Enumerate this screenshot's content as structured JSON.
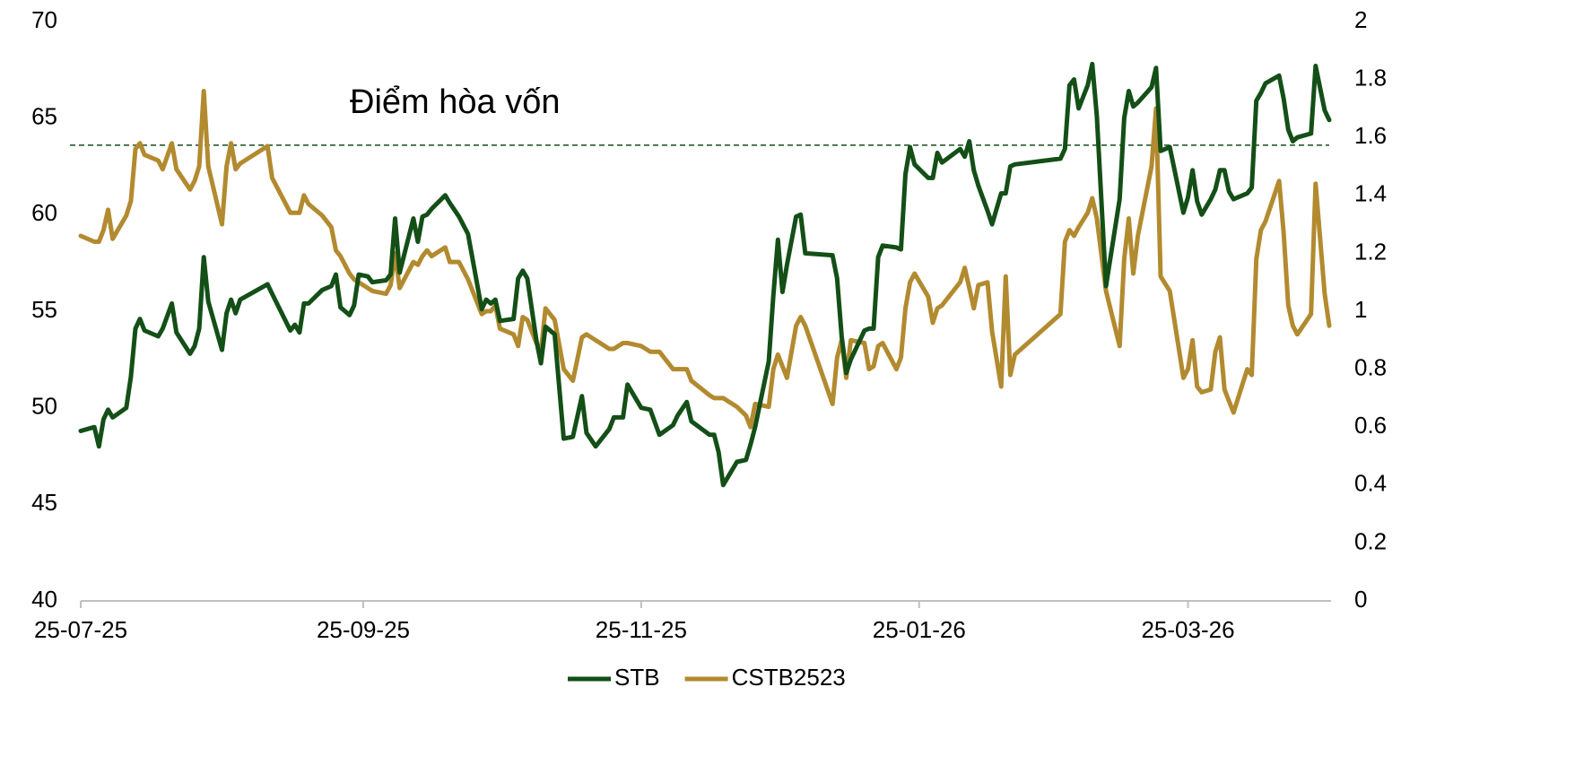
{
  "chart_data": {
    "type": "line",
    "x": [
      "2025-07-25",
      "2025-07-28",
      "2025-07-29",
      "2025-07-30",
      "2025-07-31",
      "2025-08-01",
      "2025-08-04",
      "2025-08-05",
      "2025-08-06",
      "2025-08-07",
      "2025-08-08",
      "2025-08-11",
      "2025-08-12",
      "2025-08-14",
      "2025-08-15",
      "2025-08-18",
      "2025-08-19",
      "2025-08-20",
      "2025-08-21",
      "2025-08-22",
      "2025-08-25",
      "2025-08-26",
      "2025-08-27",
      "2025-08-28",
      "2025-08-29",
      "2025-09-04",
      "2025-09-05",
      "2025-09-09",
      "2025-09-10",
      "2025-09-11",
      "2025-09-12",
      "2025-09-13",
      "2025-09-16",
      "2025-09-18",
      "2025-09-19",
      "2025-09-20",
      "2025-09-22",
      "2025-09-23",
      "2025-09-24",
      "2025-09-26",
      "2025-09-27",
      "2025-09-30",
      "2025-10-01",
      "2025-10-02",
      "2025-10-03",
      "2025-10-06",
      "2025-10-07",
      "2025-10-08",
      "2025-10-09",
      "2025-10-10",
      "2025-10-13",
      "2025-10-14",
      "2025-10-16",
      "2025-10-18",
      "2025-10-21",
      "2025-10-22",
      "2025-10-23",
      "2025-10-24",
      "2025-10-25",
      "2025-10-28",
      "2025-10-29",
      "2025-10-30",
      "2025-10-31",
      "2025-11-02",
      "2025-11-03",
      "2025-11-04",
      "2025-11-06",
      "2025-11-08",
      "2025-11-10",
      "2025-11-12",
      "2025-11-13",
      "2025-11-15",
      "2025-11-18",
      "2025-11-19",
      "2025-11-21",
      "2025-11-22",
      "2025-11-25",
      "2025-11-27",
      "2025-11-29",
      "2025-12-02",
      "2025-12-03",
      "2025-12-05",
      "2025-12-06",
      "2025-12-10",
      "2025-12-11",
      "2025-12-12",
      "2025-12-13",
      "2025-12-16",
      "2025-12-18",
      "2025-12-19",
      "2025-12-20",
      "2025-12-23",
      "2025-12-24",
      "2025-12-25",
      "2025-12-26",
      "2025-12-27",
      "2025-12-29",
      "2025-12-30",
      "2025-12-31",
      "2026-01-06",
      "2026-01-07",
      "2026-01-08",
      "2026-01-09",
      "2026-01-10",
      "2026-01-13",
      "2026-01-14",
      "2026-01-15",
      "2026-01-16",
      "2026-01-17",
      "2026-01-20",
      "2026-01-21",
      "2026-01-22",
      "2026-01-23",
      "2026-01-24",
      "2026-01-27",
      "2026-01-28",
      "2026-01-29",
      "2026-01-30",
      "2026-02-03",
      "2026-02-04",
      "2026-02-05",
      "2026-02-06",
      "2026-02-07",
      "2026-02-09",
      "2026-02-10",
      "2026-02-12",
      "2026-02-13",
      "2026-02-14",
      "2026-02-15",
      "2026-02-25",
      "2026-02-26",
      "2026-02-27",
      "2026-02-28",
      "2026-03-01",
      "2026-03-03",
      "2026-03-04",
      "2026-03-05",
      "2026-03-07",
      "2026-03-10",
      "2026-03-11",
      "2026-03-12",
      "2026-03-13",
      "2026-03-14",
      "2026-03-17",
      "2026-03-18",
      "2026-03-19",
      "2026-03-21",
      "2026-03-24",
      "2026-03-25",
      "2026-03-26",
      "2026-03-27",
      "2026-03-28",
      "2026-03-30",
      "2026-03-31",
      "2026-04-01",
      "2026-04-02",
      "2026-04-03",
      "2026-04-04",
      "2026-04-07",
      "2026-04-08",
      "2026-04-09",
      "2026-04-10",
      "2026-04-11",
      "2026-04-14",
      "2026-04-15",
      "2026-04-16",
      "2026-04-17",
      "2026-04-18",
      "2026-04-21",
      "2026-04-22",
      "2026-04-24",
      "2026-04-25"
    ],
    "series": [
      {
        "name": "STB",
        "color": "#134f17",
        "axis": "y",
        "values": [
          48.8,
          49.0,
          48.0,
          49.4,
          49.9,
          49.5,
          50.0,
          51.6,
          54.1,
          54.6,
          54.0,
          53.7,
          54.1,
          55.4,
          53.9,
          52.8,
          53.2,
          54.1,
          57.8,
          55.5,
          53.0,
          54.9,
          55.6,
          54.9,
          55.6,
          56.4,
          55.9,
          54.0,
          54.3,
          53.9,
          55.4,
          55.4,
          56.1,
          56.3,
          56.9,
          55.2,
          54.8,
          55.3,
          56.9,
          56.8,
          56.5,
          56.6,
          56.9,
          59.8,
          57.0,
          59.8,
          58.6,
          59.9,
          60.0,
          60.3,
          61.0,
          60.6,
          59.9,
          59.0,
          55.1,
          55.6,
          55.4,
          55.6,
          54.5,
          54.6,
          56.7,
          57.1,
          56.7,
          53.5,
          52.3,
          54.2,
          53.8,
          48.4,
          48.5,
          50.6,
          48.7,
          48.0,
          48.9,
          49.5,
          49.5,
          51.2,
          50.0,
          49.9,
          48.6,
          49.1,
          49.6,
          50.3,
          49.3,
          48.6,
          48.6,
          47.7,
          46.0,
          47.2,
          47.3,
          48.1,
          49.0,
          52.4,
          55.8,
          58.7,
          56.0,
          57.4,
          59.9,
          60.0,
          58.0,
          57.9,
          56.7,
          53.7,
          51.8,
          52.5,
          54.0,
          54.1,
          54.1,
          57.8,
          58.4,
          58.3,
          58.2,
          62.1,
          63.5,
          62.6,
          61.9,
          61.9,
          63.2,
          62.7,
          63.4,
          63.0,
          63.8,
          62.3,
          61.5,
          60.2,
          59.5,
          61.1,
          61.1,
          62.5,
          62.6,
          62.9,
          63.4,
          66.7,
          67.0,
          65.5,
          66.7,
          67.8,
          65.1,
          56.3,
          60.8,
          65.0,
          66.4,
          65.6,
          65.8,
          66.6,
          67.6,
          63.3,
          63.5,
          60.1,
          60.9,
          62.3,
          60.7,
          60.0,
          60.8,
          61.3,
          62.3,
          62.3,
          61.2,
          60.8,
          61.1,
          61.4,
          65.9,
          66.3,
          66.8,
          67.2,
          66.0,
          64.4,
          63.8,
          64.0,
          64.2,
          67.7,
          65.4,
          64.9
        ]
      },
      {
        "name": "CSTB2523",
        "color": "#b28a2f",
        "axis": "y2",
        "values": [
          1.26,
          1.24,
          1.24,
          1.28,
          1.35,
          1.25,
          1.33,
          1.38,
          1.56,
          1.58,
          1.54,
          1.52,
          1.49,
          1.58,
          1.49,
          1.42,
          1.45,
          1.5,
          1.76,
          1.5,
          1.3,
          1.5,
          1.58,
          1.49,
          1.51,
          1.57,
          1.46,
          1.34,
          1.34,
          1.34,
          1.4,
          1.37,
          1.33,
          1.29,
          1.21,
          1.19,
          1.13,
          1.11,
          1.1,
          1.08,
          1.07,
          1.06,
          1.09,
          1.2,
          1.08,
          1.17,
          1.16,
          1.19,
          1.21,
          1.19,
          1.22,
          1.17,
          1.17,
          1.11,
          0.99,
          1.0,
          1.0,
          1.02,
          0.94,
          0.92,
          0.88,
          0.98,
          0.97,
          0.89,
          0.86,
          1.01,
          0.97,
          0.8,
          0.76,
          0.91,
          0.92,
          0.9,
          0.87,
          0.87,
          0.89,
          0.89,
          0.88,
          0.86,
          0.86,
          0.8,
          0.8,
          0.8,
          0.76,
          0.71,
          0.7,
          0.7,
          0.7,
          0.67,
          0.64,
          0.6,
          0.68,
          0.67,
          0.8,
          0.85,
          0.81,
          0.77,
          0.95,
          0.98,
          0.95,
          0.68,
          0.84,
          0.9,
          0.77,
          0.9,
          0.89,
          0.8,
          0.81,
          0.88,
          0.89,
          0.8,
          0.84,
          1.01,
          1.1,
          1.13,
          1.05,
          0.96,
          1.01,
          1.02,
          1.1,
          1.15,
          1.08,
          1.01,
          1.09,
          1.1,
          0.93,
          0.74,
          1.12,
          0.78,
          0.85,
          0.99,
          1.24,
          1.28,
          1.26,
          1.29,
          1.34,
          1.39,
          1.32,
          1.07,
          0.88,
          1.18,
          1.32,
          1.13,
          1.26,
          1.5,
          1.7,
          1.12,
          1.07,
          0.77,
          0.8,
          0.9,
          0.74,
          0.72,
          0.73,
          0.86,
          0.91,
          0.73,
          0.69,
          0.65,
          0.8,
          0.78,
          1.18,
          1.28,
          1.31,
          1.45,
          1.27,
          1.02,
          0.95,
          0.92,
          0.99,
          1.44,
          1.06,
          0.95
        ]
      }
    ],
    "xlim": [
      "2025-07-25",
      "2026-04-25"
    ],
    "xticks": [
      {
        "value": "2025-07-25",
        "label": "25-07-25"
      },
      {
        "value": "2025-09-25",
        "label": "25-09-25"
      },
      {
        "value": "2025-11-25",
        "label": "25-11-25"
      },
      {
        "value": "2026-01-25",
        "label": "25-01-26"
      },
      {
        "value": "2026-03-25",
        "label": "25-03-26"
      }
    ],
    "ylim": [
      40,
      70
    ],
    "yticks": [
      40,
      45,
      50,
      55,
      60,
      65,
      70
    ],
    "y2lim": [
      0,
      2
    ],
    "y2ticks": [
      0,
      0.2,
      0.4,
      0.6,
      0.8,
      1,
      1.2,
      1.4,
      1.6,
      1.8,
      2
    ],
    "reference_line": {
      "value": 63.6,
      "label": "Điểm hòa vốn",
      "color": "#134f17"
    },
    "legend": "bottom"
  }
}
